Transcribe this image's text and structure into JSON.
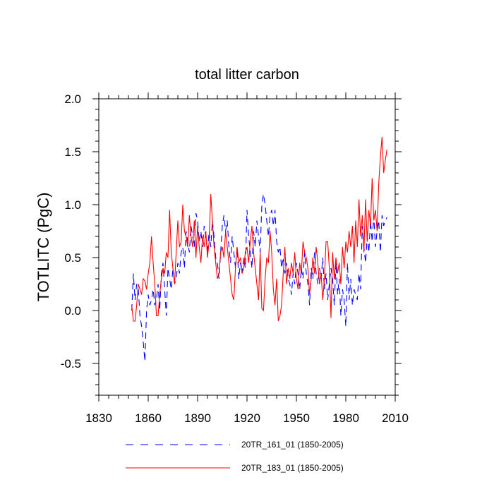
{
  "chart_data": {
    "type": "line",
    "title": "total litter carbon",
    "xlabel": "",
    "ylabel": "TOTLITC  (PgC)",
    "xlim": [
      1830,
      2010
    ],
    "ylim": [
      -0.8,
      2.0
    ],
    "xticks": [
      1830,
      1860,
      1890,
      1920,
      1950,
      1980,
      2010
    ],
    "xtick_labels": [
      "1830",
      "1860",
      "1890",
      "1920",
      "1950",
      "1980",
      "2010"
    ],
    "yticks": [
      -0.5,
      0.0,
      0.5,
      1.0,
      1.5,
      2.0
    ],
    "ytick_labels": [
      "-0.5",
      "0.0",
      "0.5",
      "1.0",
      "1.5",
      "2.0"
    ],
    "grid": false,
    "legend_position": "bottom",
    "series": [
      {
        "name": "20TR_161_01 (1850-2005)",
        "color": "#0000ff",
        "dash": "dashed",
        "x": [
          1850,
          1851,
          1852,
          1853,
          1854,
          1855,
          1856,
          1857,
          1858,
          1859,
          1860,
          1861,
          1862,
          1863,
          1864,
          1865,
          1866,
          1867,
          1868,
          1869,
          1870,
          1871,
          1872,
          1873,
          1874,
          1875,
          1876,
          1877,
          1878,
          1879,
          1880,
          1881,
          1882,
          1883,
          1884,
          1885,
          1886,
          1887,
          1888,
          1889,
          1890,
          1891,
          1892,
          1893,
          1894,
          1895,
          1896,
          1897,
          1898,
          1899,
          1900,
          1901,
          1902,
          1903,
          1904,
          1905,
          1906,
          1907,
          1908,
          1909,
          1910,
          1911,
          1912,
          1913,
          1914,
          1915,
          1916,
          1917,
          1918,
          1919,
          1920,
          1921,
          1922,
          1923,
          1924,
          1925,
          1926,
          1927,
          1928,
          1929,
          1930,
          1931,
          1932,
          1933,
          1934,
          1935,
          1936,
          1937,
          1938,
          1939,
          1940,
          1941,
          1942,
          1943,
          1944,
          1945,
          1946,
          1947,
          1948,
          1949,
          1950,
          1951,
          1952,
          1953,
          1954,
          1955,
          1956,
          1957,
          1958,
          1959,
          1960,
          1961,
          1962,
          1963,
          1964,
          1965,
          1966,
          1967,
          1968,
          1969,
          1970,
          1971,
          1972,
          1973,
          1974,
          1975,
          1976,
          1977,
          1978,
          1979,
          1980,
          1981,
          1982,
          1983,
          1984,
          1985,
          1986,
          1987,
          1988,
          1989,
          1990,
          1991,
          1992,
          1993,
          1994,
          1995,
          1996,
          1997,
          1998,
          1999,
          2000,
          2001,
          2002,
          2003,
          2004,
          2005
        ],
        "y": [
          0.0,
          0.35,
          0.1,
          0.25,
          0.2,
          -0.05,
          -0.15,
          -0.3,
          -0.48,
          0.0,
          0.15,
          0.05,
          0.1,
          0.2,
          0.05,
          0.1,
          0.25,
          0.0,
          0.35,
          0.45,
          0.2,
          -0.05,
          0.4,
          0.3,
          0.2,
          0.4,
          0.25,
          0.3,
          0.45,
          0.35,
          0.55,
          0.6,
          0.4,
          0.75,
          0.65,
          0.55,
          0.8,
          0.7,
          0.6,
          0.92,
          0.85,
          0.65,
          0.75,
          0.6,
          0.8,
          0.7,
          0.55,
          0.75,
          0.6,
          0.85,
          0.7,
          0.5,
          0.45,
          0.3,
          0.55,
          0.8,
          0.9,
          0.75,
          0.85,
          0.6,
          0.45,
          0.7,
          0.55,
          0.4,
          0.6,
          0.3,
          0.45,
          0.35,
          0.5,
          0.4,
          0.95,
          0.7,
          0.55,
          0.4,
          0.75,
          0.6,
          0.85,
          0.7,
          0.55,
          1.0,
          1.1,
          1.0,
          0.85,
          0.7,
          0.9,
          0.95,
          0.8,
          0.95,
          0.65,
          0.55,
          0.6,
          0.4,
          0.5,
          0.35,
          0.45,
          0.3,
          0.25,
          0.15,
          0.35,
          0.25,
          0.45,
          0.35,
          0.2,
          0.4,
          0.3,
          0.55,
          0.35,
          0.25,
          0.05,
          0.4,
          0.3,
          0.55,
          0.35,
          0.25,
          0.4,
          0.3,
          0.5,
          0.2,
          0.35,
          0.1,
          0.25,
          0.4,
          0.3,
          0.05,
          0.45,
          0.15,
          0.3,
          -0.05,
          0.2,
          0.1,
          -0.15,
          0.45,
          0.1,
          0.3,
          0.05,
          0.2,
          0.15,
          0.1,
          0.35,
          0.2,
          0.8,
          0.6,
          0.45,
          0.7,
          0.55,
          0.85,
          0.65,
          0.9,
          0.6,
          0.75,
          0.85,
          0.55,
          0.9,
          0.8,
          0.85,
          0.88
        ]
      },
      {
        "name": "20TR_183_01 (1850-2005)",
        "color": "#ff0000",
        "dash": "solid",
        "x": [
          1850,
          1851,
          1852,
          1853,
          1854,
          1855,
          1856,
          1857,
          1858,
          1859,
          1860,
          1861,
          1862,
          1863,
          1864,
          1865,
          1866,
          1867,
          1868,
          1869,
          1870,
          1871,
          1872,
          1873,
          1874,
          1875,
          1876,
          1877,
          1878,
          1879,
          1880,
          1881,
          1882,
          1883,
          1884,
          1885,
          1886,
          1887,
          1888,
          1889,
          1890,
          1891,
          1892,
          1893,
          1894,
          1895,
          1896,
          1897,
          1898,
          1899,
          1900,
          1901,
          1902,
          1903,
          1904,
          1905,
          1906,
          1907,
          1908,
          1909,
          1910,
          1911,
          1912,
          1913,
          1914,
          1915,
          1916,
          1917,
          1918,
          1919,
          1920,
          1921,
          1922,
          1923,
          1924,
          1925,
          1926,
          1927,
          1928,
          1929,
          1930,
          1931,
          1932,
          1933,
          1934,
          1935,
          1936,
          1937,
          1938,
          1939,
          1940,
          1941,
          1942,
          1943,
          1944,
          1945,
          1946,
          1947,
          1948,
          1949,
          1950,
          1951,
          1952,
          1953,
          1954,
          1955,
          1956,
          1957,
          1958,
          1959,
          1960,
          1961,
          1962,
          1963,
          1964,
          1965,
          1966,
          1967,
          1968,
          1969,
          1970,
          1971,
          1972,
          1973,
          1974,
          1975,
          1976,
          1977,
          1978,
          1979,
          1980,
          1981,
          1982,
          1983,
          1984,
          1985,
          1986,
          1987,
          1988,
          1989,
          1990,
          1991,
          1992,
          1993,
          1994,
          1995,
          1996,
          1997,
          1998,
          1999,
          2000,
          2001,
          2002,
          2003,
          2004,
          2005
        ],
        "y": [
          0.05,
          -0.1,
          -0.1,
          0.05,
          0.25,
          0.2,
          0.15,
          0.3,
          0.28,
          0.2,
          0.35,
          0.45,
          0.7,
          0.45,
          0.25,
          -0.05,
          -0.05,
          0.15,
          0.3,
          0.4,
          0.35,
          0.55,
          0.5,
          0.95,
          0.55,
          0.4,
          0.25,
          0.55,
          0.85,
          0.6,
          0.65,
          1.0,
          0.75,
          0.7,
          0.6,
          0.9,
          0.7,
          0.6,
          0.85,
          0.5,
          0.8,
          0.6,
          0.45,
          0.7,
          0.6,
          0.75,
          0.5,
          0.65,
          1.1,
          0.85,
          0.6,
          0.45,
          0.3,
          0.35,
          0.55,
          0.6,
          0.5,
          0.75,
          0.6,
          0.45,
          0.3,
          0.15,
          0.1,
          0.4,
          0.6,
          0.45,
          0.5,
          0.35,
          0.4,
          0.55,
          0.6,
          0.45,
          0.65,
          0.8,
          0.55,
          0.4,
          0.25,
          0.1,
          0.55,
          0.02,
          0.0,
          0.3,
          0.5,
          0.45,
          0.75,
          0.55,
          0.2,
          0.05,
          0.3,
          -0.1,
          -0.05,
          0.05,
          0.35,
          0.6,
          0.25,
          0.4,
          0.3,
          0.45,
          0.35,
          0.55,
          0.3,
          0.2,
          0.45,
          0.35,
          0.65,
          0.55,
          0.5,
          0.4,
          0.15,
          0.3,
          0.5,
          0.35,
          0.6,
          0.45,
          0.25,
          0.35,
          0.1,
          0.3,
          0.65,
          0.65,
          0.4,
          -0.07,
          0.55,
          0.3,
          0.5,
          0.35,
          0.45,
          0.25,
          0.6,
          0.4,
          0.65,
          0.55,
          0.75,
          0.6,
          0.8,
          0.45,
          0.85,
          0.6,
          1.05,
          0.7,
          0.9,
          0.55,
          1.05,
          0.65,
          0.95,
          0.8,
          1.25,
          0.85,
          0.95,
          0.75,
          1.2,
          1.45,
          1.64,
          1.3,
          1.42,
          1.52
        ]
      }
    ]
  }
}
